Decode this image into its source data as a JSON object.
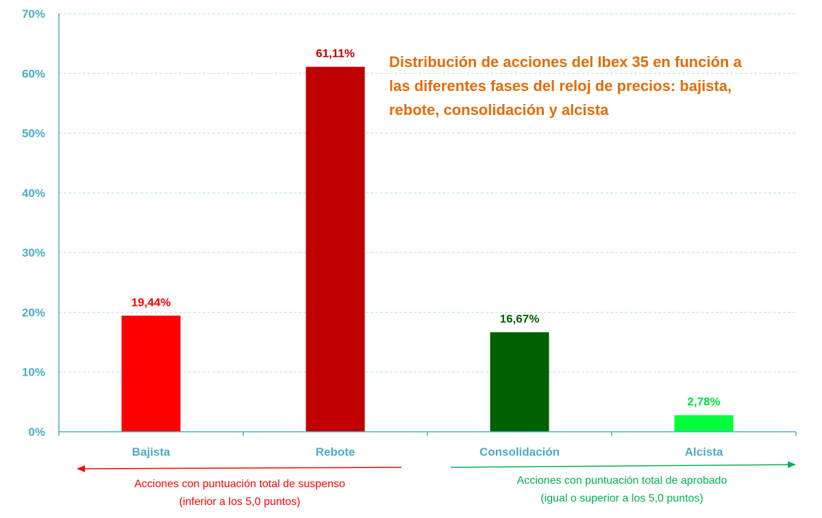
{
  "chart_data": {
    "type": "bar",
    "title_lines": [
      "Distribución de acciones del Ibex 35 en función a",
      "las diferentes fases del reloj de precios: bajista,",
      "rebote, consolidación y alcista"
    ],
    "categories": [
      "Bajista",
      "Rebote",
      "Consolidación",
      "Alcista"
    ],
    "values": [
      19.44,
      61.11,
      16.67,
      2.78
    ],
    "value_labels": [
      "19,44%",
      "61,11%",
      "16,67%",
      "2,78%"
    ],
    "bar_colors": [
      "#FF0000",
      "#C00000",
      "#006100",
      "#00FF3A"
    ],
    "label_colors": [
      "#FF0000",
      "#C00000",
      "#006100",
      "#00E040"
    ],
    "ylim": [
      0,
      70
    ],
    "yticks": [
      0,
      10,
      20,
      30,
      40,
      50,
      60,
      70
    ],
    "ytick_labels": [
      "0%",
      "10%",
      "20%",
      "30%",
      "40%",
      "50%",
      "60%",
      "70%"
    ],
    "grid": true,
    "xlabel": "",
    "ylabel": ""
  },
  "annotations": {
    "left": {
      "direction": "left",
      "color": "#FF0000",
      "line1": "Acciones con puntuación total de suspenso",
      "line2": "(inferior a los 5,0 puntos)"
    },
    "right": {
      "direction": "right",
      "color": "#00B050",
      "line1": "Acciones con puntuación total de aprobado",
      "line2": "(igual o superior a los 5,0 puntos)"
    }
  },
  "colors": {
    "axis": "#4BACC6",
    "grid": "#B7DEE8",
    "title": "#E36C09"
  }
}
